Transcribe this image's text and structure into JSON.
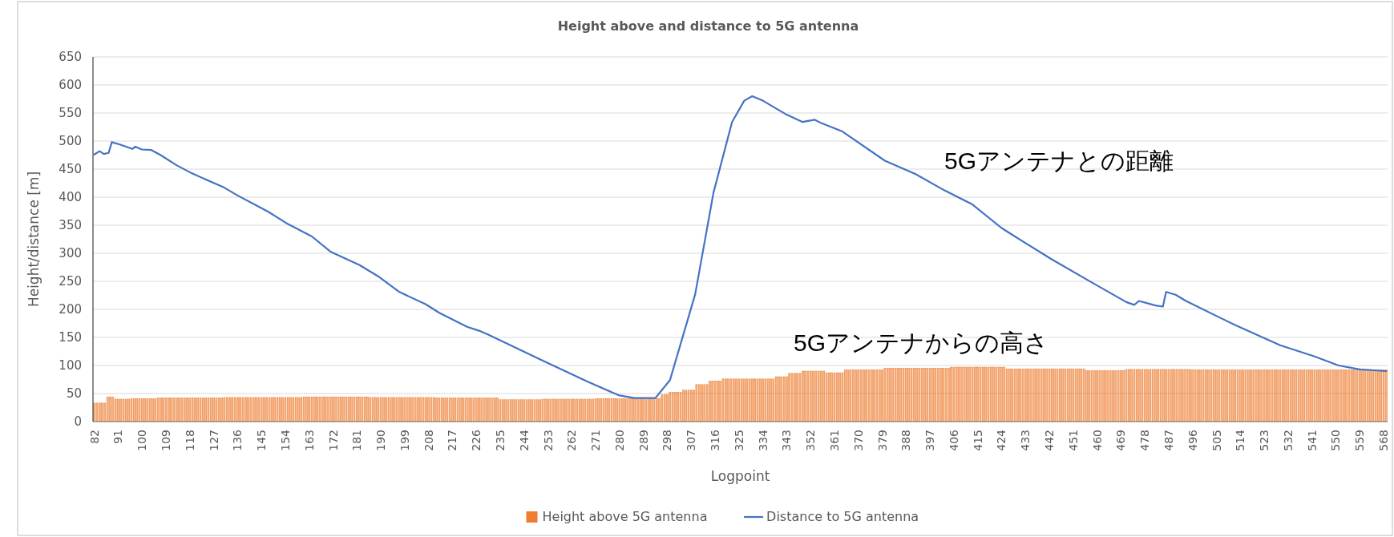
{
  "chart_data": {
    "type": "bar",
    "title": "Height above and distance to 5G antenna",
    "xlabel": "Logpoint",
    "ylabel": "Height/distance [m]",
    "xlim": [
      81.5,
      569.5
    ],
    "xticks": [
      82,
      91,
      100,
      109,
      118,
      127,
      136,
      145,
      154,
      163,
      172,
      181,
      190,
      199,
      208,
      217,
      226,
      235,
      244,
      253,
      262,
      271,
      280,
      289,
      298,
      307,
      316,
      325,
      334,
      343,
      352,
      361,
      370,
      379,
      388,
      397,
      406,
      415,
      424,
      433,
      442,
      451,
      460,
      469,
      478,
      487,
      496,
      505,
      514,
      523,
      532,
      541,
      550,
      559,
      568
    ],
    "ylim": [
      0,
      650
    ],
    "yticks": [
      0,
      50,
      100,
      150,
      200,
      250,
      300,
      350,
      400,
      450,
      500,
      550,
      600,
      650
    ],
    "grid": "y",
    "legend": "bottom",
    "annotations": [
      "5Gアンテナとの距離",
      "5Gアンテナからの高さ"
    ],
    "series": [
      {
        "name": "Height above 5G antenna",
        "color": "#ed7d31",
        "x": [
          82,
          83,
          84,
          85,
          86,
          87,
          88,
          89,
          90,
          91,
          92,
          93,
          94,
          95,
          96,
          97,
          98,
          99,
          100,
          101,
          102,
          103,
          104,
          105,
          106,
          107,
          108,
          109,
          110,
          111,
          112,
          113,
          114,
          115,
          116,
          117,
          118,
          119,
          120,
          121,
          122,
          123,
          124,
          125,
          126,
          127,
          128,
          129,
          130,
          131,
          132,
          133,
          134,
          135,
          136,
          137,
          138,
          139,
          140,
          141,
          142,
          143,
          144,
          145,
          146,
          147,
          148,
          149,
          150,
          151,
          152,
          153,
          154,
          155,
          156,
          157,
          158,
          159,
          160,
          161,
          162,
          163,
          164,
          165,
          166,
          167,
          168,
          169,
          170,
          171,
          172,
          173,
          174,
          175,
          176,
          177,
          178,
          179,
          180,
          181,
          182,
          183,
          184,
          185,
          186,
          187,
          188,
          189,
          190,
          191,
          192,
          193,
          194,
          195,
          196,
          197,
          198,
          199,
          200,
          201,
          202,
          203,
          204,
          205,
          206,
          207,
          208,
          209,
          210,
          211,
          212,
          213,
          214,
          215,
          216,
          217,
          218,
          219,
          220,
          221,
          222,
          223,
          224,
          225,
          226,
          227,
          228,
          229,
          230,
          231,
          232,
          233,
          234,
          235,
          236,
          237,
          238,
          239,
          240,
          241,
          242,
          243,
          244,
          245,
          246,
          247,
          248,
          249,
          250,
          251,
          252,
          253,
          254,
          255,
          256,
          257,
          258,
          259,
          260,
          261,
          262,
          263,
          264,
          265,
          266,
          267,
          268,
          269,
          270,
          271,
          272,
          273,
          274,
          275,
          276,
          277,
          278,
          279,
          280,
          281,
          282,
          283,
          284,
          285,
          286,
          287,
          288,
          289,
          290,
          291,
          292,
          293,
          294,
          295,
          296,
          297,
          298,
          299,
          300,
          301,
          302,
          303,
          304,
          305,
          306,
          307,
          308,
          309,
          310,
          311,
          312,
          313,
          314,
          315,
          316,
          317,
          318,
          319,
          320,
          321,
          322,
          323,
          324,
          325,
          326,
          327,
          328,
          329,
          330,
          331,
          332,
          333,
          334,
          335,
          336,
          337,
          338,
          339,
          340,
          341,
          342,
          343,
          344,
          345,
          346,
          347,
          348,
          349,
          350,
          351,
          352,
          353,
          354,
          355,
          356,
          357,
          358,
          359,
          360,
          361,
          362,
          363,
          364,
          365,
          366,
          367,
          368,
          369,
          370,
          371,
          372,
          373,
          374,
          375,
          376,
          377,
          378,
          379,
          380,
          381,
          382,
          383,
          384,
          385,
          386,
          387,
          388,
          389,
          390,
          391,
          392,
          393,
          394,
          395,
          396,
          397,
          398,
          399,
          400,
          401,
          402,
          403,
          404,
          405,
          406,
          407,
          408,
          409,
          410,
          411,
          412,
          413,
          414,
          415,
          416,
          417,
          418,
          419,
          420,
          421,
          422,
          423,
          424,
          425,
          426,
          427,
          428,
          429,
          430,
          431,
          432,
          433,
          434,
          435,
          436,
          437,
          438,
          439,
          440,
          441,
          442,
          443,
          444,
          445,
          446,
          447,
          448,
          449,
          450,
          451,
          452,
          453,
          454,
          455,
          456,
          457,
          458,
          459,
          460,
          461,
          462,
          463,
          464,
          465,
          466,
          467,
          468,
          469,
          470,
          471,
          472,
          473,
          474,
          475,
          476,
          477,
          478,
          479,
          480,
          481,
          482,
          483,
          484,
          485,
          486,
          487,
          488,
          489,
          490,
          491,
          492,
          493,
          494,
          495,
          496,
          497,
          498,
          499,
          500,
          501,
          502,
          503,
          504,
          505,
          506,
          507,
          508,
          509,
          510,
          511,
          512,
          513,
          514,
          515,
          516,
          517,
          518,
          519,
          520,
          521,
          522,
          523,
          524,
          525,
          526,
          527,
          528,
          529,
          530,
          531,
          532,
          533,
          534,
          535,
          536,
          537,
          538,
          539,
          540,
          541,
          542,
          543,
          544,
          545,
          546,
          547,
          548,
          549,
          550,
          551,
          552,
          553,
          554,
          555,
          556,
          557,
          558,
          559,
          560,
          561,
          562,
          563,
          564,
          565,
          566,
          567,
          568,
          569
        ],
        "values": [
          33,
          33,
          33,
          33,
          33,
          44,
          44,
          44,
          40,
          40,
          40,
          40,
          40,
          40,
          41,
          41,
          41,
          41,
          41,
          41,
          41,
          41,
          41,
          41,
          42,
          42,
          42,
          42,
          42,
          42,
          42,
          42,
          42,
          42,
          42,
          42,
          42,
          42,
          42,
          42,
          42,
          42,
          42,
          42,
          42,
          42,
          42,
          42,
          42,
          43,
          43,
          43,
          43,
          43,
          43,
          43,
          43,
          43,
          43,
          43,
          43,
          43,
          43,
          43,
          43,
          43,
          43,
          43,
          43,
          43,
          43,
          43,
          43,
          43,
          43,
          43,
          43,
          43,
          43,
          44,
          44,
          44,
          44,
          44,
          44,
          44,
          44,
          44,
          44,
          44,
          44,
          44,
          44,
          44,
          44,
          44,
          44,
          44,
          44,
          44,
          44,
          44,
          44,
          44,
          43,
          43,
          43,
          43,
          43,
          43,
          43,
          43,
          43,
          43,
          43,
          43,
          43,
          43,
          43,
          43,
          43,
          43,
          43,
          43,
          43,
          43,
          43,
          43,
          43,
          42,
          42,
          42,
          42,
          42,
          42,
          42,
          42,
          42,
          42,
          42,
          42,
          42,
          42,
          42,
          42,
          42,
          42,
          42,
          42,
          42,
          42,
          42,
          42,
          39,
          39,
          39,
          39,
          39,
          39,
          39,
          39,
          39,
          39,
          39,
          39,
          39,
          39,
          39,
          39,
          40,
          40,
          40,
          40,
          40,
          40,
          40,
          40,
          40,
          40,
          40,
          40,
          40,
          40,
          40,
          40,
          40,
          40,
          40,
          40,
          41,
          41,
          41,
          41,
          41,
          41,
          41,
          41,
          41,
          41,
          41,
          41,
          41,
          41,
          41,
          41,
          41,
          41,
          41,
          41,
          41,
          41,
          41,
          41,
          41,
          48,
          48,
          48,
          52,
          52,
          52,
          52,
          52,
          56,
          56,
          56,
          56,
          56,
          66,
          66,
          66,
          66,
          66,
          72,
          72,
          72,
          72,
          72,
          76,
          76,
          76,
          76,
          76,
          76,
          76,
          76,
          76,
          76,
          76,
          76,
          76,
          76,
          76,
          76,
          76,
          76,
          76,
          76,
          80,
          80,
          80,
          80,
          80,
          86,
          86,
          86,
          86,
          86,
          90,
          90,
          90,
          90,
          90,
          90,
          90,
          90,
          90,
          87,
          87,
          87,
          87,
          87,
          87,
          87,
          92,
          92,
          92,
          92,
          92,
          92,
          92,
          92,
          92,
          92,
          92,
          92,
          92,
          92,
          92,
          95,
          95,
          95,
          95,
          95,
          95,
          95,
          95,
          95,
          95,
          95,
          95,
          95,
          95,
          95,
          95,
          95,
          95,
          95,
          95,
          95,
          95,
          95,
          95,
          95,
          97,
          97,
          97,
          97,
          97,
          97,
          97,
          97,
          97,
          97,
          97,
          97,
          97,
          97,
          97,
          97,
          97,
          97,
          97,
          97,
          97,
          94,
          94,
          94,
          94,
          94,
          94,
          94,
          94,
          94,
          94,
          94,
          94,
          94,
          94,
          94,
          94,
          94,
          94,
          94,
          94,
          94,
          94,
          94,
          94,
          94,
          94,
          94,
          94,
          94,
          94,
          91,
          91,
          91,
          91,
          91,
          91,
          91,
          91,
          91,
          91,
          91,
          91,
          91,
          91,
          91,
          93,
          93,
          93,
          93,
          93,
          93,
          93,
          93,
          93,
          93,
          93,
          93,
          93,
          93,
          93,
          93,
          93,
          93,
          93,
          93,
          93,
          93,
          93,
          93,
          93,
          92,
          92,
          92,
          92,
          92,
          92,
          92,
          92,
          92,
          92,
          92,
          92,
          92,
          92,
          92,
          92,
          92,
          92,
          92,
          92,
          92,
          92,
          92,
          92,
          92,
          92,
          92,
          92,
          92,
          92,
          92,
          92,
          92,
          92,
          92,
          92,
          92,
          92,
          92,
          92,
          92,
          92,
          92,
          92,
          92,
          92,
          92,
          92,
          92,
          92,
          92,
          92,
          92,
          92,
          92,
          92,
          92,
          92,
          92,
          92,
          92,
          92,
          92,
          92,
          92,
          92,
          92,
          92,
          92,
          92,
          92,
          92,
          92,
          92
        ]
      },
      {
        "name": "Distance to 5G antenna",
        "type": "line",
        "color": "#4472c4",
        "x": [
          82,
          84,
          85.6,
          87.4,
          88.6,
          91.6,
          96.3,
          97.5,
          99.9,
          103.5,
          107,
          113,
          119,
          131,
          136,
          147.6,
          155,
          164,
          171,
          182,
          189,
          197,
          207,
          212,
          222.5,
          227,
          230,
          250.9,
          268,
          279.6,
          285.5,
          293.5,
          299,
          308.5,
          315.4,
          322.4,
          327,
          330,
          334,
          343,
          349,
          353.6,
          356,
          364,
          380,
          391.6,
          402.5,
          413,
          424,
          429,
          443,
          458,
          471,
          474,
          475.8,
          482,
          484.8,
          486,
          489.6,
          493.5,
          512,
          529,
          542,
          551,
          559,
          569
        ],
        "values": [
          476,
          482,
          477,
          479,
          498,
          494,
          486,
          490,
          485,
          484,
          475,
          457,
          442,
          417,
          403,
          374,
          352,
          330,
          303,
          279,
          259,
          231,
          209,
          194,
          169,
          162,
          156,
          109,
          71,
          47,
          42,
          42,
          74,
          227,
          408,
          534,
          572,
          580,
          572,
          547,
          534,
          538,
          532,
          517,
          465,
          441,
          412,
          387,
          345,
          330,
          289,
          248,
          213,
          208,
          215,
          207,
          205,
          231,
          226,
          215,
          172,
          136,
          116,
          100,
          93,
          90
        ]
      }
    ]
  }
}
